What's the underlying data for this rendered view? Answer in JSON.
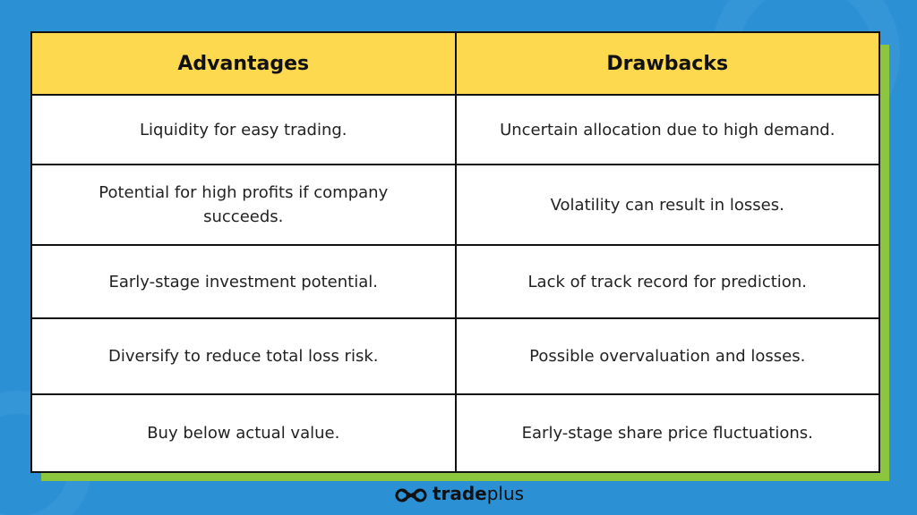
{
  "table": {
    "headers": [
      "Advantages",
      "Drawbacks"
    ],
    "rows": [
      [
        "Liquidity for easy trading.",
        "Uncertain allocation due to high demand."
      ],
      [
        "Potential for high profits if company succeeds.",
        "Volatility can result in losses."
      ],
      [
        "Early-stage investment potential.",
        "Lack of track record for prediction."
      ],
      [
        "Diversify to reduce total loss risk.",
        "Possible overvaluation and losses."
      ],
      [
        "Buy below actual value.",
        "Early-stage share price fluctuations."
      ]
    ]
  },
  "footer": {
    "brand": "trade",
    "brand_suffix": "plus"
  }
}
